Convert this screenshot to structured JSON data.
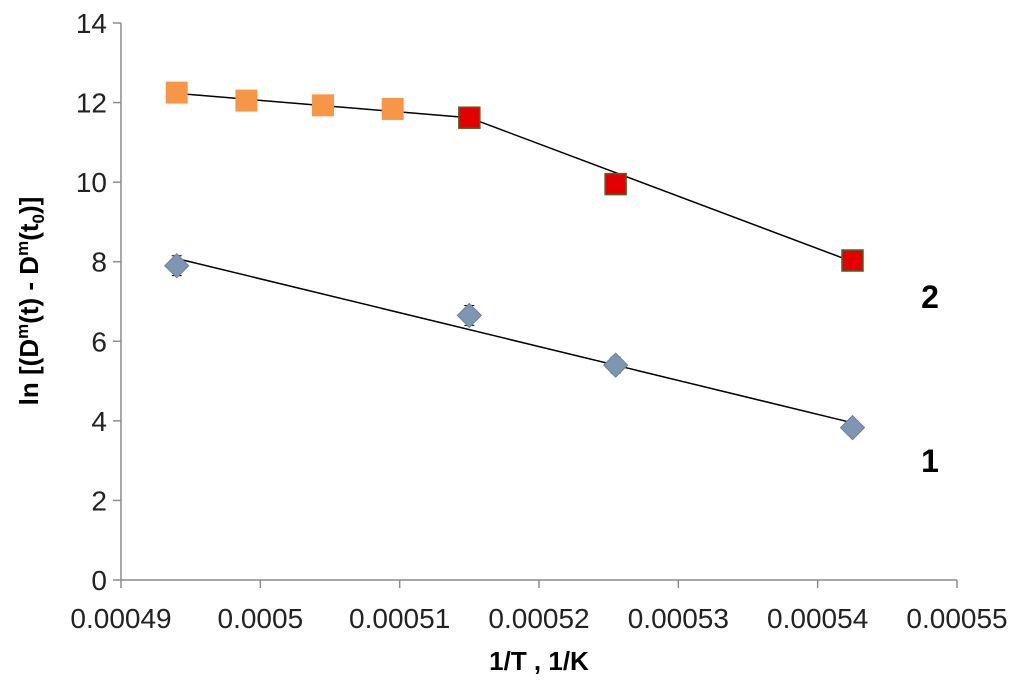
{
  "chart_data": {
    "type": "scatter",
    "title": "",
    "xlabel": "1/T , 1/K",
    "ylabel_parts": {
      "p1": "ln [(D",
      "sup1": "m",
      "p2": "(t) - D",
      "sup2": "m",
      "p3": "(t",
      "sub": "0",
      "p4": ")]"
    },
    "xlim": [
      0.00049,
      0.00055
    ],
    "ylim": [
      0,
      14
    ],
    "x_ticks": [
      "0.00049",
      "0.0005",
      "0.00051",
      "0.00052",
      "0.00053",
      "0.00054",
      "0.00055"
    ],
    "y_ticks": [
      "0",
      "2",
      "4",
      "6",
      "8",
      "10",
      "12",
      "14"
    ],
    "x_tick_values": [
      0.00049,
      0.0005,
      0.00051,
      0.00052,
      0.00053,
      0.00054,
      0.00055
    ],
    "y_tick_values": [
      0,
      2,
      4,
      6,
      8,
      10,
      12,
      14
    ],
    "grid": false,
    "legend": "none",
    "series": [
      {
        "label": "1",
        "marker": "diamond",
        "color": "#7f96b2",
        "points": [
          {
            "x": 0.000494,
            "y": 7.9,
            "err": 0.25
          },
          {
            "x": 0.000515,
            "y": 6.65,
            "err": 0.25
          },
          {
            "x": 0.0005255,
            "y": 5.4,
            "err": 0.2
          },
          {
            "x": 0.0005425,
            "y": 3.83,
            "err": 0.15
          }
        ],
        "fit": [
          {
            "x": 0.000494,
            "y": 8.08
          },
          {
            "x": 0.0005425,
            "y": 3.95
          }
        ]
      },
      {
        "label": "2",
        "marker": "square",
        "points": [
          {
            "x": 0.000494,
            "y": 12.25,
            "color": "#f79646"
          },
          {
            "x": 0.000499,
            "y": 12.05,
            "color": "#f79646"
          },
          {
            "x": 0.0005045,
            "y": 11.93,
            "color": "#f79646"
          },
          {
            "x": 0.0005095,
            "y": 11.84,
            "color": "#f79646"
          },
          {
            "x": 0.000515,
            "y": 11.62,
            "color": "#e40000"
          },
          {
            "x": 0.0005255,
            "y": 9.95,
            "color": "#e40000"
          },
          {
            "x": 0.0005425,
            "y": 8.03,
            "color": "#e40000"
          }
        ],
        "fit": [
          {
            "x": 0.000494,
            "y": 12.23
          },
          {
            "x": 0.000515,
            "y": 11.62
          },
          {
            "x": 0.0005425,
            "y": 8.0
          }
        ]
      }
    ]
  }
}
